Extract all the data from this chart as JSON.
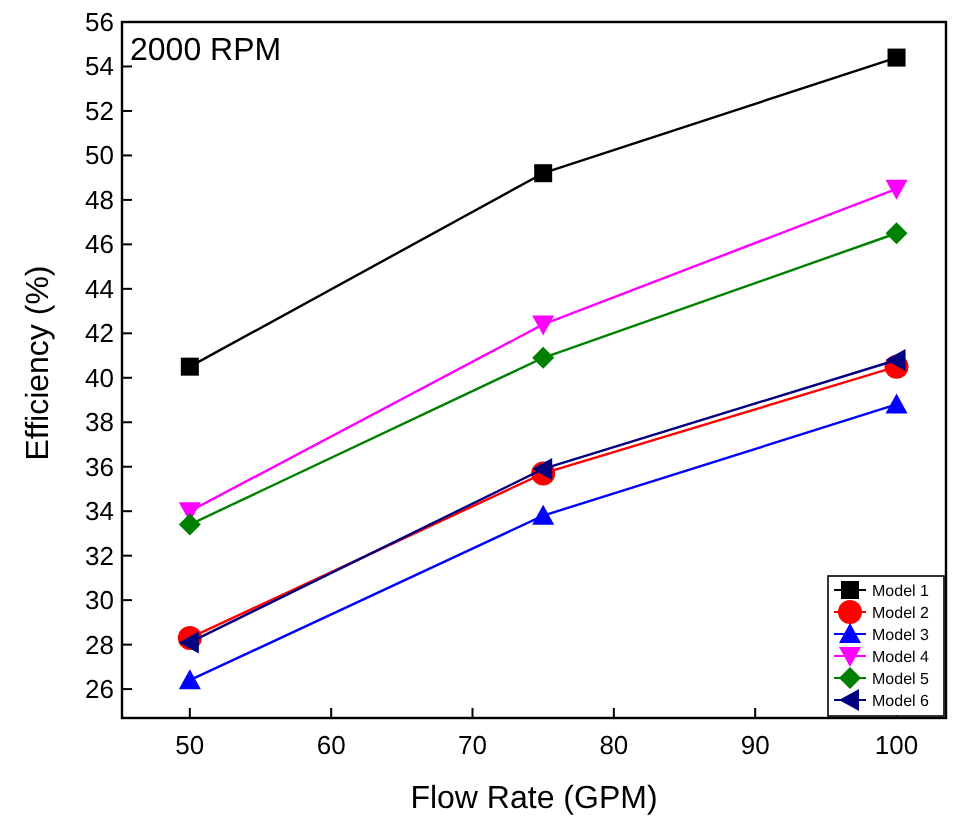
{
  "chart_data": {
    "type": "line",
    "title": "2000 RPM",
    "xlabel": "Flow Rate (GPM)",
    "ylabel": "Efficiency (%)",
    "x": [
      50,
      75,
      100
    ],
    "xlim": [
      45.2,
      103.5
    ],
    "xticks": [
      50,
      60,
      70,
      80,
      90,
      100
    ],
    "ylim": [
      24.7,
      56
    ],
    "yticks": [
      26,
      28,
      30,
      32,
      34,
      36,
      38,
      40,
      42,
      44,
      46,
      48,
      50,
      52,
      54,
      56
    ],
    "grid": false,
    "legend": "bottom right",
    "line_style": "solid",
    "series": [
      {
        "name": "Model 1",
        "color": "#000000",
        "marker": "square",
        "values": [
          40.5,
          49.2,
          54.4
        ]
      },
      {
        "name": "Model 2",
        "color": "#ff0000",
        "marker": "circle",
        "values": [
          28.3,
          35.7,
          40.5
        ]
      },
      {
        "name": "Model 3",
        "color": "#0000ff",
        "marker": "triangle",
        "values": [
          26.4,
          33.8,
          38.8
        ]
      },
      {
        "name": "Model 4",
        "color": "#ff00ff",
        "marker": "triangle-down",
        "values": [
          34.0,
          42.4,
          48.5
        ]
      },
      {
        "name": "Model 5",
        "color": "#008000",
        "marker": "diamond",
        "values": [
          33.4,
          40.9,
          46.5
        ]
      },
      {
        "name": "Model 6",
        "color": "#000080",
        "marker": "triangle-left",
        "values": [
          28.1,
          35.9,
          40.8
        ]
      }
    ]
  }
}
